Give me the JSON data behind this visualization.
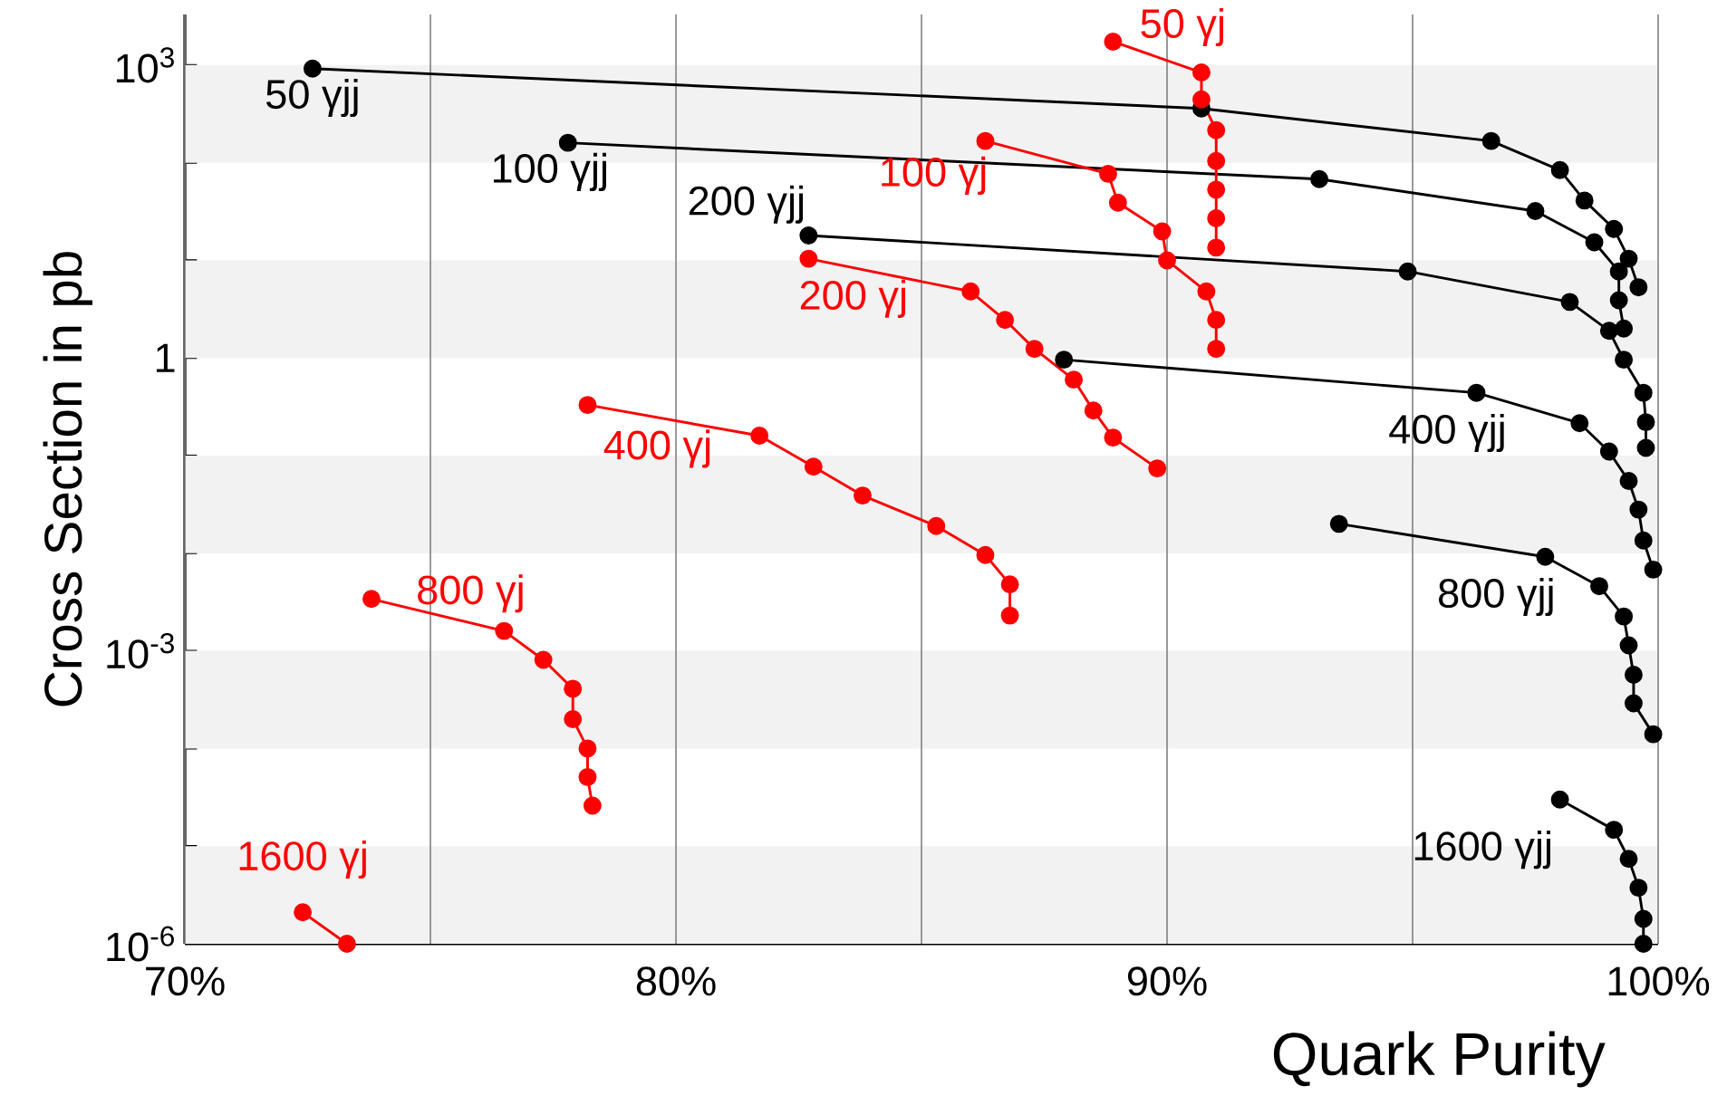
{
  "chart_data": {
    "type": "line",
    "xlabel": "Quark Purity",
    "ylabel": "Cross Section in pb",
    "log": "y",
    "grid": "x",
    "marker": "circle",
    "line_style": "solid",
    "xlim": [
      70,
      100
    ],
    "ylim": [
      1e-06,
      3300
    ],
    "xticks": [
      {
        "value": 70,
        "label": "70%"
      },
      {
        "value": 75,
        "label": null
      },
      {
        "value": 80,
        "label": "80%"
      },
      {
        "value": 85,
        "label": null
      },
      {
        "value": 90,
        "label": "90%"
      },
      {
        "value": 95,
        "label": null
      },
      {
        "value": 100,
        "label": "100%"
      }
    ],
    "yticks": [
      {
        "value": 1e-06,
        "label": "10$^{-6}$"
      },
      {
        "value": 1e-05,
        "label": null
      },
      {
        "value": 0.0001,
        "label": null
      },
      {
        "value": 0.001,
        "label": "10$^{-3}$"
      },
      {
        "value": 0.01,
        "label": null
      },
      {
        "value": 0.1,
        "label": null
      },
      {
        "value": 1,
        "label": "1"
      },
      {
        "value": 10,
        "label": null
      },
      {
        "value": 100,
        "label": null
      },
      {
        "value": 1000,
        "label": "10$^{3}$"
      }
    ],
    "bands": [
      {
        "axis": "y",
        "from": 100,
        "to": 1000,
        "color": "#f2f2f2"
      },
      {
        "axis": "y",
        "from": 1,
        "to": 10,
        "color": "#f2f2f2"
      },
      {
        "axis": "y",
        "from": 0.01,
        "to": 0.1,
        "color": "#f2f2f2"
      },
      {
        "axis": "y",
        "from": 0.0001,
        "to": 0.001,
        "color": "#f2f2f2"
      },
      {
        "axis": "y",
        "from": 1e-06,
        "to": 1e-05,
        "color": "#f2f2f2"
      }
    ],
    "series": [
      {
        "name": "50 γjj",
        "color": "#000000",
        "x": [
          72.6,
          90.7,
          96.6,
          98.0,
          98.5,
          99.1,
          99.4,
          99.6
        ],
        "values": [
          920,
          360,
          167,
          84,
          41,
          21,
          10.4,
          5.3
        ]
      },
      {
        "name": "100 γjj",
        "color": "#000000",
        "x": [
          77.8,
          93.1,
          97.5,
          98.7,
          99.2,
          99.2,
          99.3
        ],
        "values": [
          160,
          68,
          32,
          15.3,
          7.7,
          3.9,
          2.0
        ]
      },
      {
        "name": "200 γjj",
        "color": "#000000",
        "x": [
          82.7,
          94.9,
          98.2,
          99.0,
          99.3,
          99.7,
          99.75,
          99.75
        ],
        "values": [
          18,
          7.7,
          3.75,
          1.9,
          0.96,
          0.44,
          0.22,
          0.12
        ]
      },
      {
        "name": "400 γjj",
        "color": "#000000",
        "x": [
          87.9,
          96.3,
          98.4,
          99.0,
          99.4,
          99.6,
          99.7,
          99.9
        ],
        "values": [
          0.96,
          0.44,
          0.215,
          0.11,
          0.055,
          0.028,
          0.0135,
          0.0068
        ]
      },
      {
        "name": "800 γjj",
        "color": "#000000",
        "x": [
          93.5,
          97.7,
          98.8,
          99.3,
          99.4,
          99.5,
          99.5,
          99.9
        ],
        "values": [
          0.02,
          0.0092,
          0.0046,
          0.00225,
          0.00114,
          0.00057,
          0.00029,
          0.00014
        ]
      },
      {
        "name": "1600 γjj",
        "color": "#000000",
        "x": [
          98.0,
          99.1,
          99.4,
          99.6,
          99.7,
          99.7
        ],
        "values": [
          3e-05,
          1.47e-05,
          7.4e-06,
          3.75e-06,
          1.8e-06,
          1e-06
        ]
      },
      {
        "name": "50 γj",
        "color": "#ff0000",
        "x": [
          88.9,
          90.7,
          90.7,
          91.0,
          91.0,
          91.0,
          91.0,
          91.0
        ],
        "values": [
          1740,
          840,
          445,
          215,
          104,
          53,
          27,
          13.5
        ]
      },
      {
        "name": "100 γj",
        "color": "#ff0000",
        "x": [
          86.3,
          88.8,
          89.0,
          89.9,
          90.0,
          90.8,
          91.0,
          91.0
        ],
        "values": [
          167,
          77,
          39,
          19.8,
          10,
          4.8,
          2.45,
          1.24
        ]
      },
      {
        "name": "200 γj",
        "color": "#ff0000",
        "x": [
          82.7,
          86.0,
          86.7,
          87.3,
          88.1,
          88.5,
          88.9,
          89.8
        ],
        "values": [
          10.4,
          4.8,
          2.45,
          1.24,
          0.6,
          0.29,
          0.153,
          0.074
        ]
      },
      {
        "name": "400 γj",
        "color": "#ff0000",
        "x": [
          78.2,
          81.7,
          82.8,
          83.8,
          85.3,
          86.3,
          86.8,
          86.8
        ],
        "values": [
          0.33,
          0.16,
          0.077,
          0.039,
          0.019,
          0.0096,
          0.0048,
          0.0023
        ]
      },
      {
        "name": "800 γj",
        "color": "#ff0000",
        "x": [
          73.8,
          76.5,
          77.3,
          77.9,
          77.9,
          78.2,
          78.2,
          78.3
        ],
        "values": [
          0.0034,
          0.0016,
          0.00081,
          0.00041,
          0.0002,
          0.0001,
          5.1e-05,
          2.6e-05
        ]
      },
      {
        "name": "1600 γj",
        "color": "#ff0000",
        "x": [
          72.4,
          73.3
        ],
        "values": [
          2.1e-06,
          1e-06
        ]
      }
    ]
  }
}
